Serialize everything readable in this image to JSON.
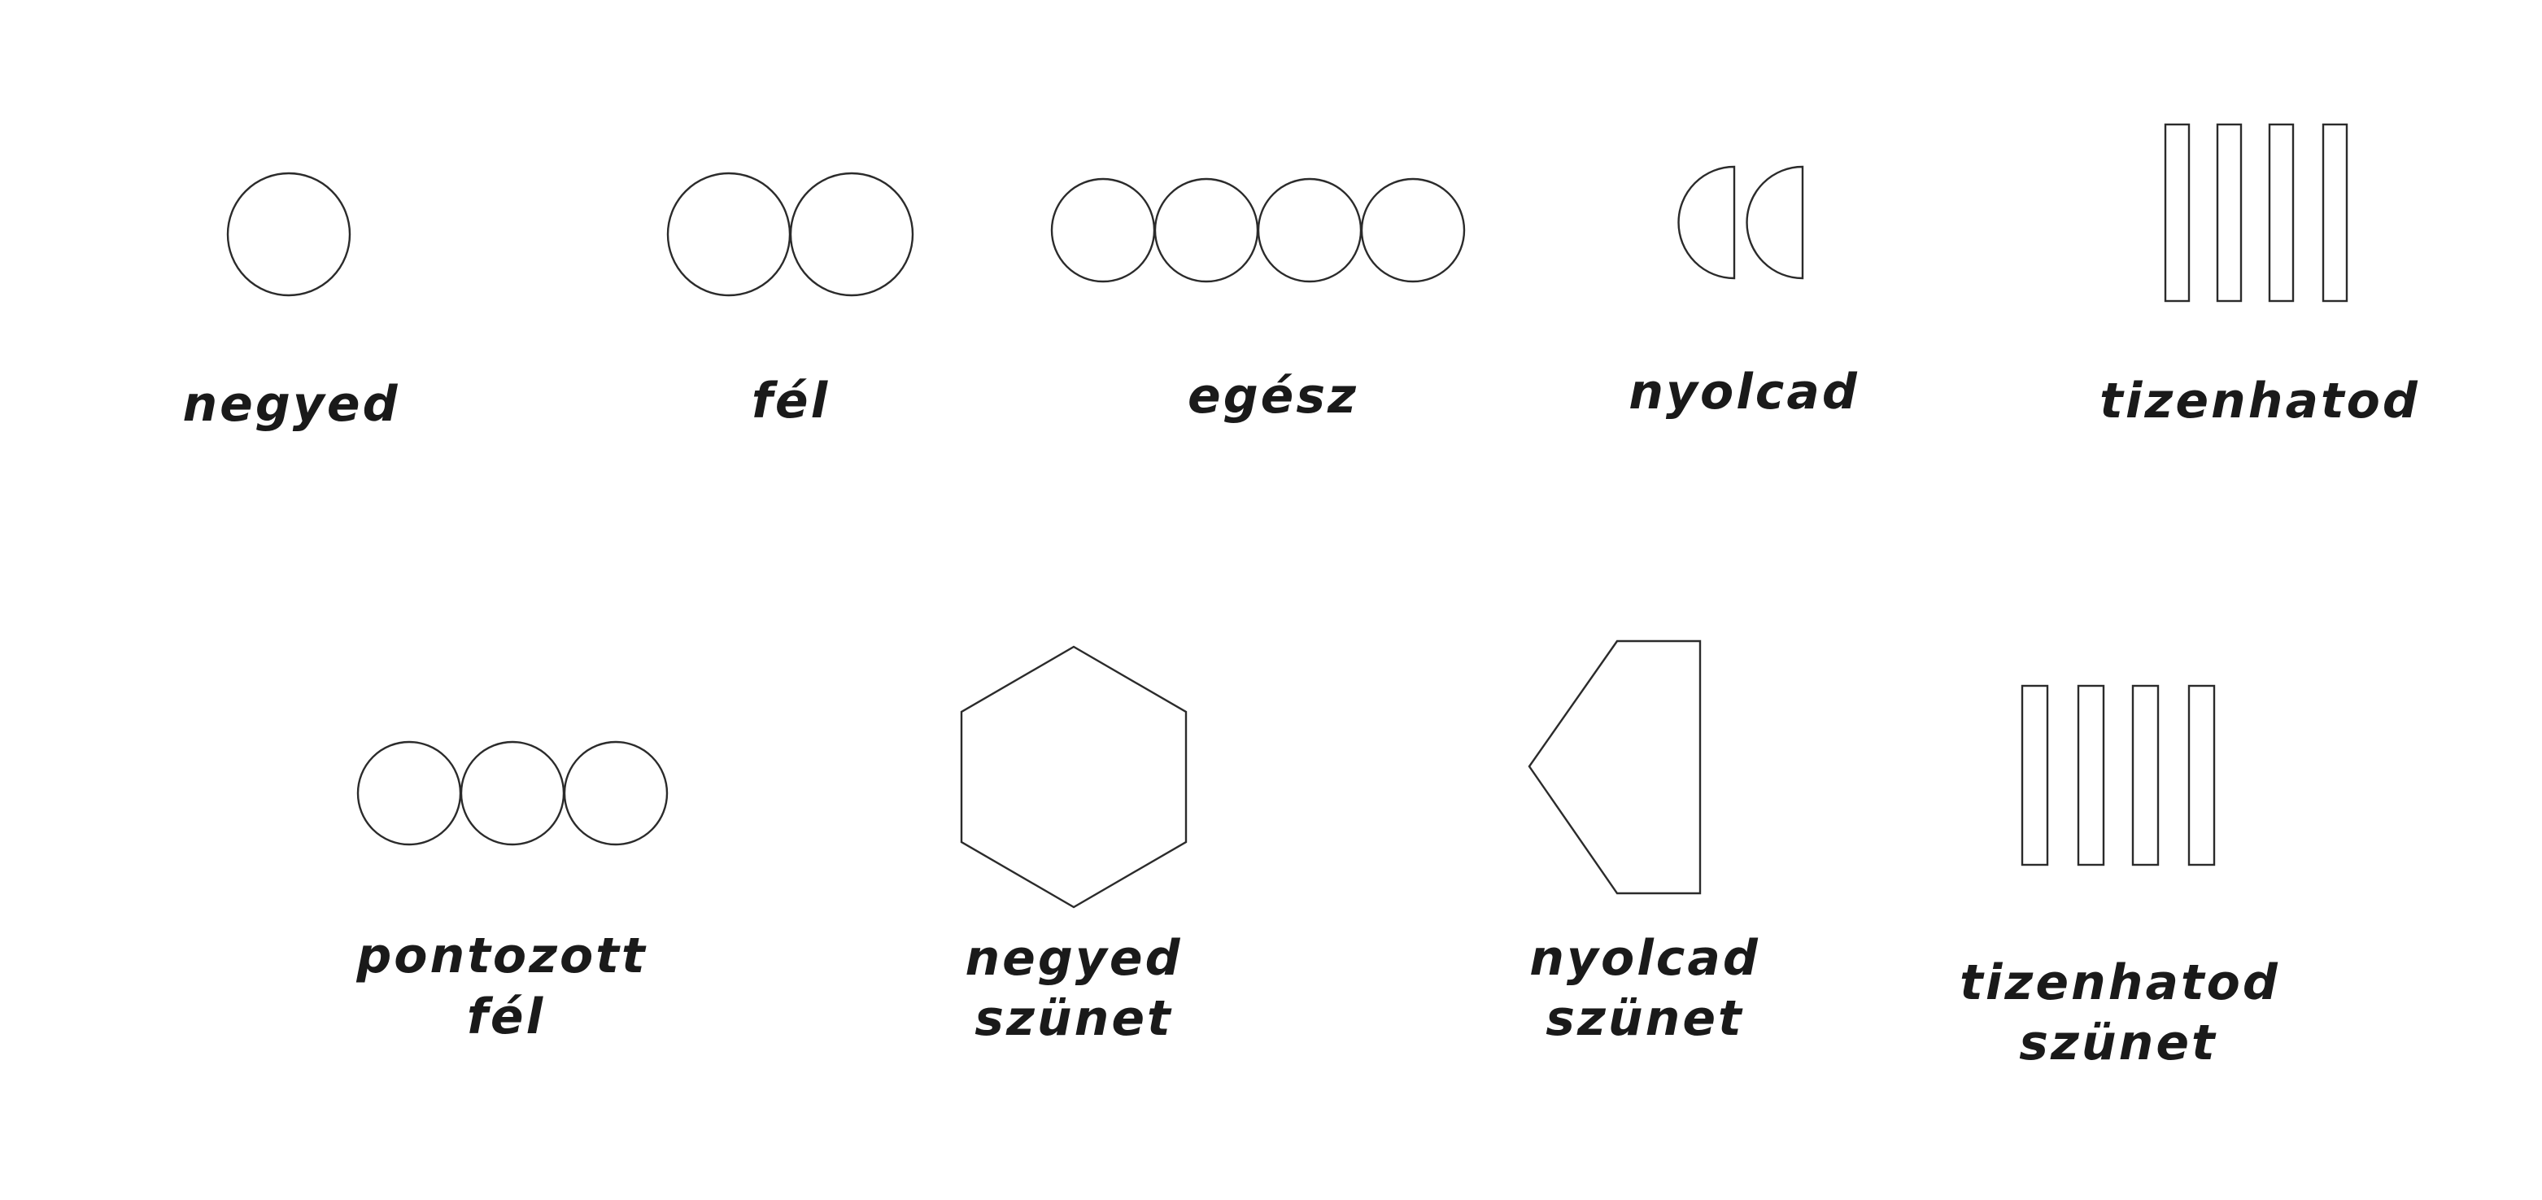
{
  "symbols": [
    {
      "id": "quarter",
      "icon": "single-circle-icon",
      "label_lines": [
        "negyed"
      ]
    },
    {
      "id": "half",
      "icon": "two-circles-icon",
      "label_lines": [
        "fél"
      ]
    },
    {
      "id": "whole",
      "icon": "four-circles-icon",
      "label_lines": [
        "egész"
      ]
    },
    {
      "id": "eighth",
      "icon": "two-half-circles-icon",
      "label_lines": [
        "nyolcad"
      ]
    },
    {
      "id": "sixteenth",
      "icon": "four-bars-icon",
      "label_lines": [
        "tizenhatod"
      ]
    },
    {
      "id": "dotted-half",
      "icon": "three-circles-icon",
      "label_lines": [
        "pontozott",
        "fél"
      ]
    },
    {
      "id": "quarter-rest",
      "icon": "hexagon-icon",
      "label_lines": [
        "negyed",
        "szünet"
      ]
    },
    {
      "id": "eighth-rest",
      "icon": "pentagon-icon",
      "label_lines": [
        "nyolcad",
        "szünet"
      ]
    },
    {
      "id": "sixteenth-rest",
      "icon": "four-bars-icon",
      "label_lines": [
        "tizenhatod",
        "szünet"
      ]
    }
  ]
}
